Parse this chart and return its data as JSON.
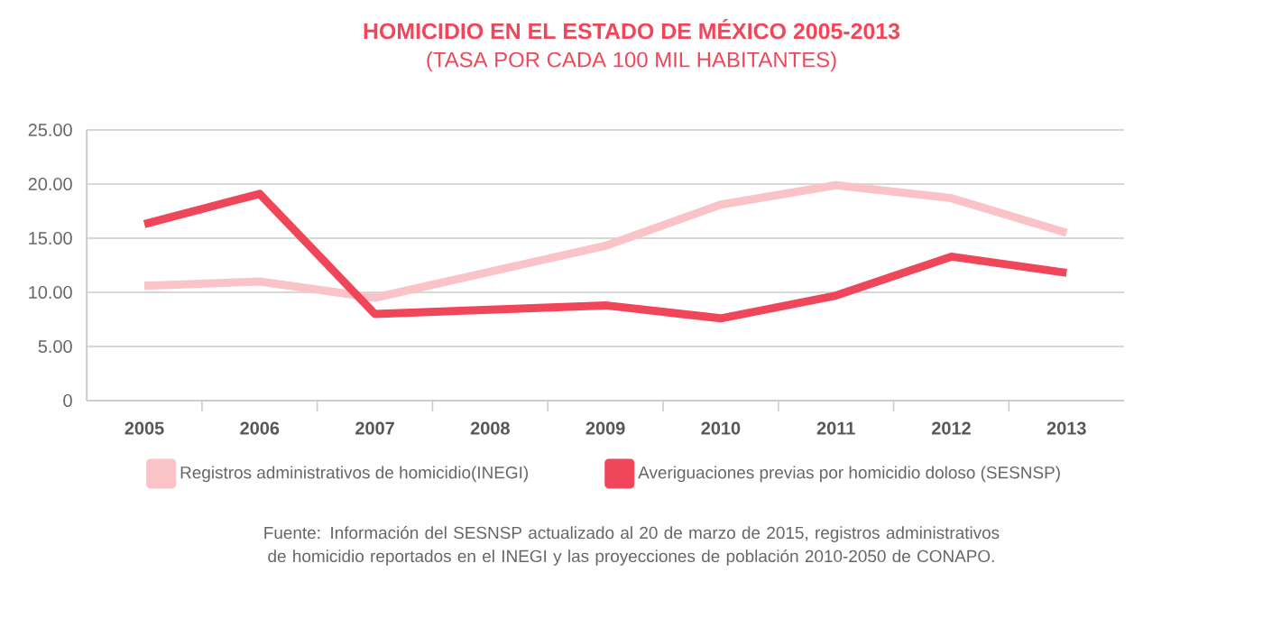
{
  "chart_data": {
    "type": "line",
    "title": "HOMICIDIO EN EL ESTADO DE MÉXICO 2005-2013",
    "subtitle": "(TASA POR CADA 100 MIL HABITANTES)",
    "categories": [
      "2005",
      "2006",
      "2007",
      "2008",
      "2009",
      "2010",
      "2011",
      "2012",
      "2013"
    ],
    "series": [
      {
        "name": "Registros administrativos de homicidio(INEGI)",
        "color": "#f9c3c8",
        "values": [
          10.6,
          11.0,
          9.5,
          11.9,
          14.3,
          18.1,
          19.9,
          18.7,
          15.5
        ]
      },
      {
        "name": "Averiguaciones previas por homicidio doloso (SESNSP)",
        "color": "#f0465a",
        "values": [
          16.3,
          19.1,
          8.0,
          8.4,
          8.8,
          7.6,
          9.7,
          13.3,
          11.8
        ]
      }
    ],
    "ylim": [
      0,
      25
    ],
    "yticks": [
      0,
      {
        "value": 5,
        "label": "5.00"
      },
      {
        "value": 10,
        "label": "10.00"
      },
      {
        "value": 15,
        "label": "15.00"
      },
      {
        "value": 20,
        "label": "20.00"
      },
      {
        "value": 25,
        "label": "25.00"
      }
    ],
    "grid": "y",
    "legend": "bottom",
    "line_style": "solid",
    "annotations": [
      "Fuente: Información del SESNSP actualizado al 20 de marzo de 2015, registros administrativos de homicidio reportados en el INEGI y las proyecciones de población 2010-2050 de CONAPO."
    ]
  }
}
